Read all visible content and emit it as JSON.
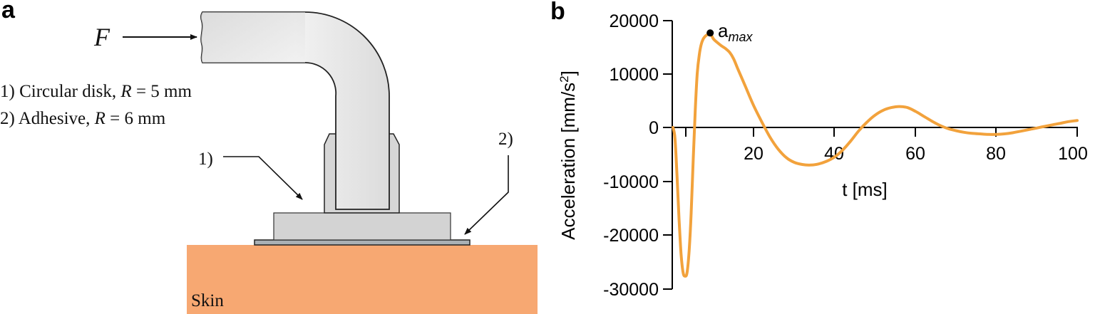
{
  "panel_a": {
    "label": "a",
    "force_symbol": "F",
    "legend": [
      {
        "num": "1) ",
        "text": "Circular disk, ",
        "var": "R",
        "value": " = 5 mm"
      },
      {
        "num": "2) ",
        "text": "Adhesive, ",
        "var": "R",
        "value": " = 6 mm"
      }
    ],
    "callout_1": "1)",
    "callout_2": "2)",
    "skin_label": "Skin",
    "colors": {
      "skin": "#f7a872",
      "tube": "#e6e6e6",
      "disk": "#d3d3d3",
      "adhesive": "#a9b0b5",
      "outline": "#222222"
    }
  },
  "panel_b": {
    "label": "b",
    "annotation": {
      "base": "a",
      "subscript": "max"
    },
    "curve_color": "#f2a23c"
  },
  "chart_data": {
    "type": "line",
    "title": "",
    "xlabel": "t [ms]",
    "ylabel": "Acceleration [mm/s^2]",
    "xlim": [
      0,
      100
    ],
    "ylim": [
      -30000,
      20000
    ],
    "x_ticks": [
      20,
      40,
      60,
      80,
      100
    ],
    "x_minor_ticks": [
      3
    ],
    "y_ticks": [
      20000,
      10000,
      0,
      -10000,
      -20000,
      -30000
    ],
    "grid": false,
    "legend": null,
    "annotations": [
      {
        "text": "a_max",
        "x": 9.2,
        "y": 17600
      }
    ],
    "series": [
      {
        "name": "Acceleration",
        "color": "#f2a23c",
        "x": [
          0,
          0.5,
          1.0,
          1.5,
          2.0,
          2.5,
          3.0,
          3.5,
          4.0,
          4.5,
          5.0,
          5.5,
          6.0,
          6.5,
          7.0,
          7.5,
          8.0,
          8.5,
          9.2,
          10,
          11,
          12,
          13,
          14,
          15,
          16,
          18,
          20,
          22,
          24,
          26,
          28,
          30,
          32,
          34,
          36,
          38,
          40,
          42,
          44,
          46,
          48,
          50,
          52,
          54,
          56,
          58,
          60,
          62,
          64,
          66,
          68,
          70,
          72,
          74,
          76,
          78,
          80,
          82,
          84,
          86,
          88,
          90,
          92,
          94,
          96,
          98,
          100
        ],
        "y": [
          0,
          -2000,
          -9000,
          -17000,
          -23500,
          -27000,
          -27700,
          -27000,
          -23000,
          -16000,
          -6000,
          3000,
          10000,
          13500,
          15500,
          16500,
          17000,
          17300,
          17600,
          16500,
          15800,
          15200,
          14700,
          14000,
          12800,
          11000,
          7500,
          4000,
          1000,
          -1800,
          -4000,
          -5600,
          -6500,
          -6900,
          -7000,
          -6800,
          -6300,
          -5500,
          -4200,
          -2500,
          -600,
          1000,
          2300,
          3200,
          3700,
          3900,
          3700,
          3000,
          2100,
          1200,
          400,
          -200,
          -600,
          -900,
          -1100,
          -1200,
          -1300,
          -1300,
          -1200,
          -1000,
          -700,
          -400,
          -100,
          200,
          500,
          800,
          1100,
          1300
        ]
      }
    ]
  }
}
